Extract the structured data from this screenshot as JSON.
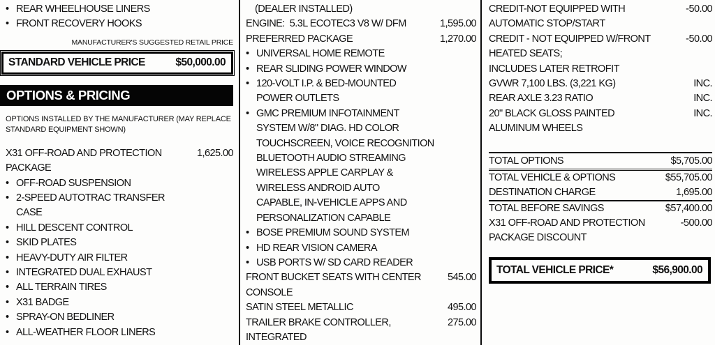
{
  "document": {
    "left": {
      "standard_equipment_bullets": [
        "REAR WHEELHOUSE LINERS",
        "FRONT RECOVERY HOOKS"
      ],
      "msrp_caption": "MANUFACTURER'S SUGGESTED RETAIL PRICE",
      "standard_price_label": "STANDARD VEHICLE PRICE",
      "standard_price_value": "$50,000.00",
      "options_header": "OPTIONS & PRICING",
      "options_note": "OPTIONS INSTALLED BY THE MANUFACTURER (MAY REPLACE\nSTANDARD EQUIPMENT SHOWN)",
      "package_label": "X31 OFF-ROAD AND PROTECTION\nPACKAGE",
      "package_price": "1,625.00",
      "package_bullets": [
        "OFF-ROAD SUSPENSION",
        "2-SPEED AUTOTRAC TRANSFER\nCASE",
        "HILL DESCENT CONTROL",
        "SKID PLATES",
        "HEAVY-DUTY AIR FILTER",
        "INTEGRATED DUAL EXHAUST",
        "ALL TERRAIN TIRES",
        "X31 BADGE",
        "SPRAY-ON BEDLINER",
        "ALL-WEATHER FLOOR LINERS"
      ]
    },
    "middle": {
      "dealer_note": "(DEALER INSTALLED)",
      "engine_label": "ENGINE:  5.3L ECOTEC3 V8 W/ DFM",
      "engine_price": "1,595.00",
      "preferred_label": "PREFERRED PACKAGE",
      "preferred_price": "1,270.00",
      "preferred_bullets": [
        "UNIVERSAL HOME REMOTE",
        "REAR SLIDING POWER WINDOW",
        "120-VOLT I.P. & BED-MOUNTED\nPOWER OUTLETS",
        "GMC PREMIUM INFOTAINMENT\nSYSTEM W/8\" DIAG. HD COLOR\nTOUCHSCREEN, VOICE RECOGNITION\nBLUETOOTH AUDIO STREAMING\nWIRELESS APPLE CARPLAY &\nWIRELESS ANDROID AUTO\nCAPABLE, IN-VEHICLE APPS AND\nPERSONALIZATION CAPABLE",
        "BOSE PREMIUM SOUND SYSTEM",
        "HD REAR VISION CAMERA",
        "USB PORTS W/ SD CARD READER"
      ],
      "bucket_label": "FRONT BUCKET SEATS WITH CENTER\nCONSOLE",
      "bucket_price": "545.00",
      "paint_label": "SATIN STEEL METALLIC",
      "paint_price": "495.00",
      "trailer_label": "TRAILER BRAKE CONTROLLER,\nINTEGRATED",
      "trailer_price": "275.00"
    },
    "right": {
      "credit_stop_start_label": "CREDIT-NOT EQUIPPED WITH\nAUTOMATIC STOP/START",
      "credit_stop_start_price": "-50.00",
      "credit_heated_seats_label": "CREDIT - NOT EQUIPPED W/FRONT\nHEATED SEATS;\nINCLUDES LATER RETROFIT",
      "credit_heated_seats_price": "-50.00",
      "gvwr_label": "GVWR 7,100 LBS. (3,221 KG)",
      "gvwr_price": "INC.",
      "axle_label": "REAR AXLE 3.23 RATIO",
      "axle_price": "INC.",
      "wheels_label": "20\" BLACK GLOSS PAINTED\nALUMINUM WHEELS",
      "wheels_price": "INC.",
      "total_options_label": "TOTAL OPTIONS",
      "total_options_value": "$5,705.00",
      "total_vehicle_options_label": "TOTAL VEHICLE & OPTIONS",
      "total_vehicle_options_value": "$55,705.00",
      "destination_label": "DESTINATION CHARGE",
      "destination_value": "1,695.00",
      "total_before_savings_label": "TOTAL BEFORE SAVINGS",
      "total_before_savings_value": "$57,400.00",
      "discount_label": "X31 OFF-ROAD AND PROTECTION\nPACKAGE DISCOUNT",
      "discount_value": "-500.00",
      "total_price_label": "TOTAL VEHICLE PRICE*",
      "total_price_value": "$56,900.00"
    }
  }
}
